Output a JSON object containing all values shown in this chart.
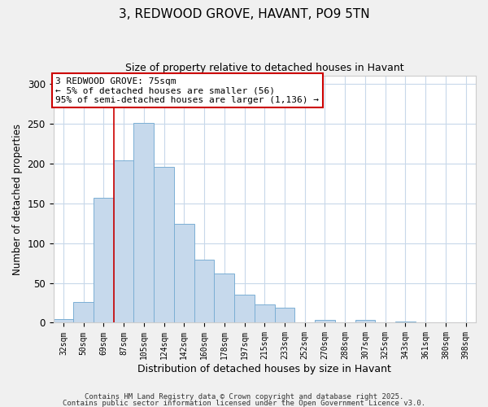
{
  "title": "3, REDWOOD GROVE, HAVANT, PO9 5TN",
  "subtitle": "Size of property relative to detached houses in Havant",
  "xlabel": "Distribution of detached houses by size in Havant",
  "ylabel": "Number of detached properties",
  "bar_labels": [
    "32sqm",
    "50sqm",
    "69sqm",
    "87sqm",
    "105sqm",
    "124sqm",
    "142sqm",
    "160sqm",
    "178sqm",
    "197sqm",
    "215sqm",
    "233sqm",
    "252sqm",
    "270sqm",
    "288sqm",
    "307sqm",
    "325sqm",
    "343sqm",
    "361sqm",
    "380sqm",
    "398sqm"
  ],
  "bar_values": [
    5,
    26,
    157,
    204,
    251,
    196,
    124,
    79,
    62,
    35,
    23,
    19,
    0,
    4,
    0,
    4,
    0,
    1,
    0,
    0,
    0
  ],
  "bar_color": "#c6d9ec",
  "bar_edge_color": "#7bafd4",
  "vline_color": "#cc0000",
  "vline_x_index": 2,
  "annotation_title": "3 REDWOOD GROVE: 75sqm",
  "annotation_line1": "← 5% of detached houses are smaller (56)",
  "annotation_line2": "95% of semi-detached houses are larger (1,136) →",
  "annotation_box_color": "#cc0000",
  "ylim": [
    0,
    310
  ],
  "yticks": [
    0,
    50,
    100,
    150,
    200,
    250,
    300
  ],
  "footer1": "Contains HM Land Registry data © Crown copyright and database right 2025.",
  "footer2": "Contains public sector information licensed under the Open Government Licence v3.0.",
  "background_color": "#f0f0f0",
  "plot_background_color": "#ffffff",
  "grid_color": "#c8d8ea"
}
